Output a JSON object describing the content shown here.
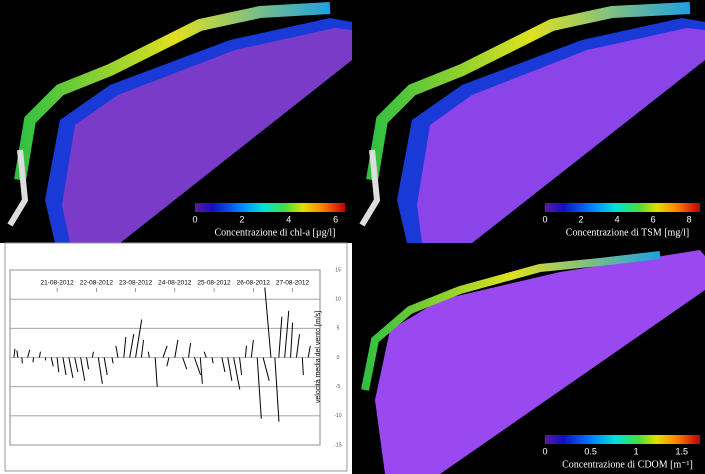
{
  "maps": [
    {
      "colorbar": {
        "lim": [
          0,
          6.4
        ],
        "ticks": [
          0,
          2,
          4,
          6
        ],
        "label": "Concentrazione di chl-a  [µg/l]"
      }
    },
    {
      "colorbar": {
        "lim": [
          0,
          8.6
        ],
        "ticks": [
          0,
          2,
          4,
          6,
          8
        ],
        "label": "Concentrazione di TSM  [mg/l]"
      }
    },
    {
      "colorbar": {
        "lim": [
          0,
          1.7
        ],
        "ticks": [
          0,
          0.5,
          1,
          1.5
        ],
        "label": "Concentrazione di CDOM  [m⁻¹]"
      }
    }
  ],
  "chart_data": {
    "type": "stick",
    "ylabel": "velocità media del vento [m/s]",
    "xlim": [
      19.8,
      27.7
    ],
    "xticks": [
      {
        "value": 21,
        "label": "21-08-2012"
      },
      {
        "value": 22,
        "label": "22-08-2012"
      },
      {
        "value": 23,
        "label": "23-08-2012"
      },
      {
        "value": 24,
        "label": "24-08-2012"
      },
      {
        "value": 25,
        "label": "25-08-2012"
      },
      {
        "value": 26,
        "label": "26-08-2012"
      },
      {
        "value": 27,
        "label": "27-08-2012"
      }
    ],
    "ylim": [
      -15,
      15
    ],
    "yticks": [
      15,
      10,
      5,
      0,
      -5,
      -10,
      -15
    ],
    "grid": true,
    "color": "#000000",
    "x": [
      19.9,
      20.0,
      20.1,
      20.25,
      20.4,
      20.55,
      20.7,
      20.85,
      21.0,
      21.15,
      21.3,
      21.45,
      21.6,
      21.75,
      21.9,
      22.05,
      22.2,
      22.4,
      22.55,
      22.7,
      22.85,
      23.0,
      23.15,
      23.35,
      23.5,
      23.7,
      23.85,
      24.0,
      24.2,
      24.35,
      24.5,
      24.65,
      24.8,
      24.95,
      25.2,
      25.35,
      25.5,
      25.65,
      25.8,
      25.95,
      26.1,
      26.25,
      26.45,
      26.55,
      26.65,
      26.8,
      26.95,
      27.1,
      27.25,
      27.4
    ],
    "u": [
      0.5,
      -0.5,
      0.3,
      1,
      -0.3,
      0.5,
      0.2,
      1,
      0.8,
      1.5,
      2,
      1.5,
      2,
      1,
      0.5,
      2,
      1.5,
      0.5,
      -1,
      1,
      2,
      3,
      1,
      -0.5,
      1,
      2,
      -1,
      1.5,
      2,
      1,
      3,
      1,
      -1,
      0.5,
      1.5,
      2,
      3,
      1,
      0.5,
      1,
      2,
      3,
      -3,
      2,
      1.5,
      2,
      1,
      1.5,
      0.5,
      1
    ],
    "v": [
      1.5,
      1.2,
      -1,
      1.3,
      -0.8,
      1,
      -0.5,
      -1.5,
      -2.5,
      -3,
      -3.5,
      -2.5,
      -4,
      -2,
      1,
      -4.5,
      -3,
      -1,
      2,
      3.5,
      4,
      6.5,
      3,
      1,
      -5,
      2,
      -1.5,
      3,
      -2,
      2.5,
      -3,
      -4.5,
      1,
      -1,
      -2.5,
      -4,
      -5.5,
      -3,
      2,
      3,
      -10.5,
      -4,
      12,
      -11,
      7,
      8,
      6,
      4,
      -3,
      2
    ]
  }
}
